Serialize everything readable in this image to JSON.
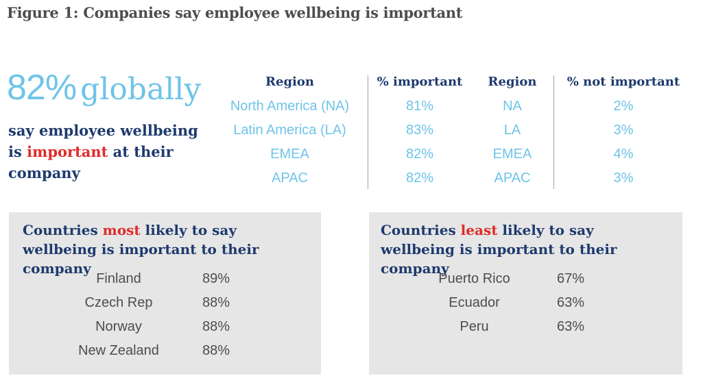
{
  "figure": {
    "title": "Figure 1: Companies say employee wellbeing is important"
  },
  "headline": {
    "big_number": "82%",
    "big_word": "globally",
    "line1": "say employee wellbeing",
    "line2_prefix": "is ",
    "line2_highlight": "important",
    "line2_suffix": " at their",
    "line3": "company"
  },
  "regions_table": {
    "headers": [
      "Region",
      "% important",
      "Region",
      "% not important"
    ],
    "important_regions": [
      "North America (NA)",
      "Latin America (LA)",
      "EMEA",
      "APAC"
    ],
    "important_values": [
      "81%",
      "83%",
      "82%",
      "82%"
    ],
    "not_regions": [
      "NA",
      "LA",
      "EMEA",
      "APAC"
    ],
    "not_values": [
      "2%",
      "3%",
      "4%",
      "3%"
    ]
  },
  "most_panel": {
    "title_prefix": "Countries ",
    "title_highlight": "most",
    "title_suffix": " likely to say wellbeing is important to their company",
    "rows": [
      {
        "country": "Finland",
        "value": "89%"
      },
      {
        "country": "Czech Rep",
        "value": "88%"
      },
      {
        "country": "Norway",
        "value": "88%"
      },
      {
        "country": "New Zealand",
        "value": "88%"
      }
    ]
  },
  "least_panel": {
    "title_prefix": "Countries ",
    "title_highlight": "least",
    "title_suffix": " likely to say wellbeing is important to their company",
    "rows": [
      {
        "country": "Puerto Rico",
        "value": "67%"
      },
      {
        "country": "Ecuador",
        "value": "63%"
      },
      {
        "country": "Peru",
        "value": "63%"
      }
    ]
  }
}
